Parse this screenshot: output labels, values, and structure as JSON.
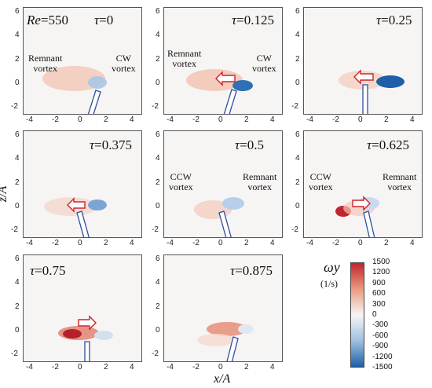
{
  "figure": {
    "re_label": "Re",
    "re_value": "=550",
    "xlabel": "x/A",
    "ylabel": "z/A",
    "x_ticks": [
      "-4",
      "-2",
      "0",
      "2",
      "4"
    ],
    "y_ticks": [
      "6",
      "4",
      "2",
      "0",
      "-2"
    ]
  },
  "colorbar": {
    "symbol": "ωy",
    "unit": "(1/s)",
    "ticks": [
      "1500",
      "1200",
      "900",
      "600",
      "300",
      "0",
      "-300",
      "-600",
      "-900",
      "-1200",
      "-1500"
    ],
    "colors": {
      "positive": "#c0262d",
      "zero": "#f7f6f6",
      "negative": "#1f5fa8"
    }
  },
  "chart_data": {
    "type": "heatmap",
    "quantity": "ωy",
    "unit": "(1/s)",
    "xlabel": "x/A",
    "ylabel": "z/A",
    "xlim": [
      -5,
      5
    ],
    "ylim": [
      -2.4,
      6
    ],
    "colorbar_range": [
      -1500,
      1500
    ],
    "panels": [
      {
        "tau": "0",
        "annotations": [
          "Remnant\nvortex",
          "CW\nvortex"
        ],
        "arrow": null,
        "blobs": [
          {
            "x": -0.6,
            "z": 0.8,
            "value": 300
          },
          {
            "x": 1.3,
            "z": 0.5,
            "value": -500
          }
        ]
      },
      {
        "tau": "0.125",
        "annotations": [
          "Remnant\nvortex",
          "CW\nvortex"
        ],
        "arrow": "left",
        "blobs": [
          {
            "x": -0.6,
            "z": 0.6,
            "value": 350
          },
          {
            "x": 1.2,
            "z": 0.1,
            "value": -1200
          }
        ]
      },
      {
        "tau": "0.25",
        "annotations": [],
        "arrow": "left",
        "blobs": [
          {
            "x": -0.4,
            "z": 0.6,
            "value": 300
          },
          {
            "x": 1.0,
            "z": 0.3,
            "value": -1400
          }
        ]
      },
      {
        "tau": "0.375",
        "annotations": [],
        "arrow": "left",
        "blobs": [
          {
            "x": -1.5,
            "z": 0.3,
            "value": 400
          },
          {
            "x": 1.0,
            "z": 0.4,
            "value": -800
          }
        ]
      },
      {
        "tau": "0.5",
        "annotations": [
          "CCW\nvortex",
          "Remnant\nvortex"
        ],
        "arrow": null,
        "blobs": [
          {
            "x": -0.8,
            "z": -0.2,
            "value": 300
          },
          {
            "x": 0.5,
            "z": 0.4,
            "value": -500
          }
        ]
      },
      {
        "tau": "0.625",
        "annotations": [
          "CCW\nvortex",
          "Remnant\nvortex"
        ],
        "arrow": "right",
        "blobs": [
          {
            "x": -1.2,
            "z": -0.2,
            "value": 1300
          },
          {
            "x": 0.6,
            "z": 0.3,
            "value": -400
          }
        ]
      },
      {
        "tau": "0.75",
        "annotations": [],
        "arrow": "right",
        "blobs": [
          {
            "x": -0.7,
            "z": 0.1,
            "value": 1500
          },
          {
            "x": 1.2,
            "z": 0.1,
            "value": -300
          }
        ]
      },
      {
        "tau": "0.875",
        "annotations": [],
        "arrow": null,
        "blobs": [
          {
            "x": -0.3,
            "z": 0.6,
            "value": 1000
          },
          {
            "x": 1.3,
            "z": 0.6,
            "value": -200
          }
        ]
      }
    ]
  }
}
